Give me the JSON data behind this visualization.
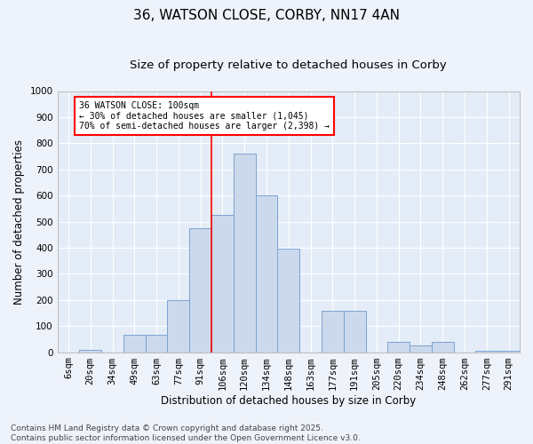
{
  "title": "36, WATSON CLOSE, CORBY, NN17 4AN",
  "subtitle": "Size of property relative to detached houses in Corby",
  "xlabel": "Distribution of detached houses by size in Corby",
  "ylabel": "Number of detached properties",
  "footer": "Contains HM Land Registry data © Crown copyright and database right 2025.\nContains public sector information licensed under the Open Government Licence v3.0.",
  "bin_labels": [
    "6sqm",
    "20sqm",
    "34sqm",
    "49sqm",
    "63sqm",
    "77sqm",
    "91sqm",
    "106sqm",
    "120sqm",
    "134sqm",
    "148sqm",
    "163sqm",
    "177sqm",
    "191sqm",
    "205sqm",
    "220sqm",
    "234sqm",
    "248sqm",
    "262sqm",
    "277sqm",
    "291sqm"
  ],
  "bar_heights": [
    0,
    10,
    0,
    65,
    65,
    200,
    475,
    525,
    760,
    600,
    395,
    0,
    160,
    160,
    0,
    40,
    25,
    40,
    0,
    5,
    5
  ],
  "bar_color": "#ccd9ed",
  "bar_edge_color": "#7ba3d0",
  "vline_x_idx": 7,
  "vline_color": "red",
  "annotation_text": "36 WATSON CLOSE: 100sqm\n← 30% of detached houses are smaller (1,045)\n70% of semi-detached houses are larger (2,398) →",
  "annotation_box_color": "white",
  "annotation_box_edge_color": "red",
  "ylim": [
    0,
    1000
  ],
  "yticks": [
    0,
    100,
    200,
    300,
    400,
    500,
    600,
    700,
    800,
    900,
    1000
  ],
  "bg_color": "#eef2fa",
  "plot_bg_color": "#e4ecf7",
  "grid_color": "#ffffff",
  "title_fontsize": 11,
  "subtitle_fontsize": 9.5,
  "label_fontsize": 8.5,
  "tick_fontsize": 7.5,
  "footer_fontsize": 6.5
}
